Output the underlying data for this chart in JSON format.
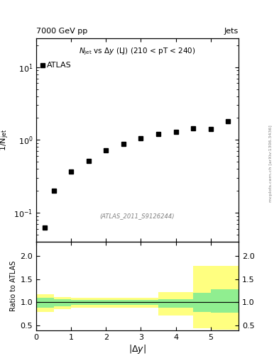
{
  "title_top_left": "7000 GeV pp",
  "title_top_right": "Jets",
  "plot_title": "N$_{jet}$ vs $\\Delta y$ (LJ) (210 < pT < 240)",
  "watermark": "(ATLAS_2011_S9126244)",
  "side_text": "mcplots.cern.ch [arXiv:1306.3436]",
  "ylabel_main": "$1/N^{jet}$",
  "xlabel": "$|\\Delta y|$",
  "ylabel_ratio": "Ratio to ATLAS",
  "data_x": [
    0.25,
    0.5,
    1.0,
    1.5,
    2.0,
    2.5,
    3.0,
    3.5,
    4.0,
    4.5,
    5.0,
    5.5
  ],
  "data_y": [
    0.062,
    0.2,
    0.37,
    0.52,
    0.72,
    0.88,
    1.05,
    1.2,
    1.3,
    1.45,
    1.4,
    1.82
  ],
  "legend_label": "ATLAS",
  "ylim_main": [
    0.04,
    25
  ],
  "ylim_ratio": [
    0.4,
    2.3
  ],
  "xlim": [
    0,
    5.8
  ],
  "ratio_bins_x0": [
    0.0,
    0.5,
    1.0,
    2.0,
    3.5,
    4.5,
    5.0
  ],
  "ratio_bins_x1": [
    0.5,
    1.0,
    2.0,
    3.5,
    4.5,
    5.0,
    5.8
  ],
  "ratio_green_top": [
    1.1,
    1.07,
    1.05,
    1.05,
    1.07,
    1.2,
    1.28
  ],
  "ratio_green_bot": [
    0.88,
    0.92,
    0.95,
    0.95,
    0.88,
    0.8,
    0.78
  ],
  "ratio_yellow_top": [
    1.18,
    1.12,
    1.1,
    1.1,
    1.22,
    1.78,
    1.78
  ],
  "ratio_yellow_bot": [
    0.8,
    0.86,
    0.88,
    0.88,
    0.72,
    0.45,
    0.42
  ],
  "color_green": "#90EE90",
  "color_yellow": "#FFFF80",
  "marker_color": "black",
  "marker_size": 4.5
}
